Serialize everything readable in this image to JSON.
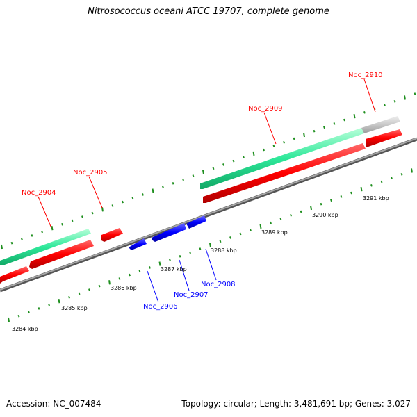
{
  "title": "Nitrosococcus oceani ATCC 19707, complete genome",
  "footer": {
    "accession": "Accession: NC_007484",
    "summary": "Topology: circular; Length: 3,481,691 bp; Genes: 3,027"
  },
  "colors": {
    "forward_cds": "#ff0000",
    "reverse_cds": "#0000ff",
    "forward_gene": "#2ee89a",
    "other_gene": "#c8c8c8",
    "backbone": "#7a7a7a",
    "tick": "#1f8f1f"
  },
  "scale_labels": [
    "3284 kbp",
    "3285 kbp",
    "3286 kbp",
    "3287 kbp",
    "3288 kbp",
    "3289 kbp",
    "3290 kbp",
    "3291 kbp"
  ],
  "genes": [
    {
      "name": "Noc_2904",
      "strand": "forward"
    },
    {
      "name": "Noc_2905",
      "strand": "forward"
    },
    {
      "name": "Noc_2909",
      "strand": "forward"
    },
    {
      "name": "Noc_2910",
      "strand": "forward"
    },
    {
      "name": "Noc_2906",
      "strand": "reverse"
    },
    {
      "name": "Noc_2907",
      "strand": "reverse"
    },
    {
      "name": "Noc_2908",
      "strand": "reverse"
    }
  ]
}
